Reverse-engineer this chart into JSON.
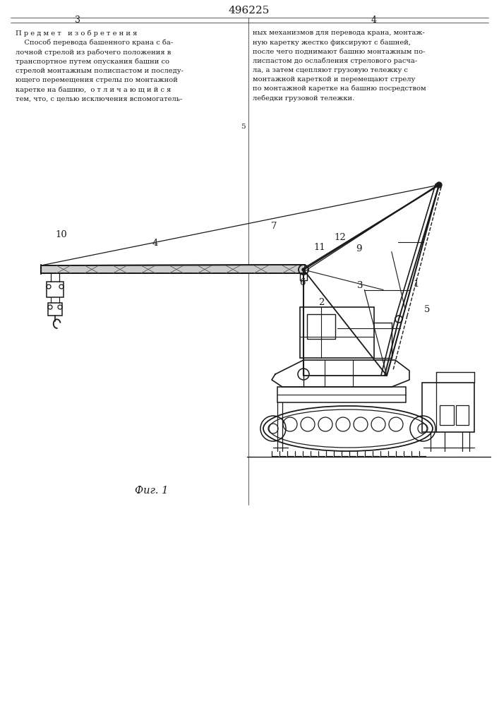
{
  "title": "496225",
  "page_left": "3",
  "page_right": "4",
  "fig_caption": "Фиг. 1",
  "bg_color": "#ffffff",
  "lc": "#1a1a1a",
  "tc": "#1a1a1a",
  "left_col": "П р е д м е т   и з о б р е т е н и я\n    Способ перевода башенного крана с ба-\nлочной стрелой из рабочего положения в\nтранспортное путем опускания башни со\nстрелой монтажным полиспастом и последу-\nющего перемещения стрелы по монтажной\nкаретке на башню,  о т л и ч а ю щ и й с я\nтем, что, с целью исключения вспомогатель-",
  "right_col": "ных механизмов для перевода крана, монтаж-\nную каретку жестко фиксируют с башней,\nпосле чего поднимают башню монтажным по-\nлиспастом до ослабления стрелового расча-\nла, а затем сцепляют грузовую тележку с\nмонтажной кареткой и перемещают стрелу\nпо монтажной каретке на башню посредством\nлебедки грузовой тележки.",
  "divider_num": "5"
}
